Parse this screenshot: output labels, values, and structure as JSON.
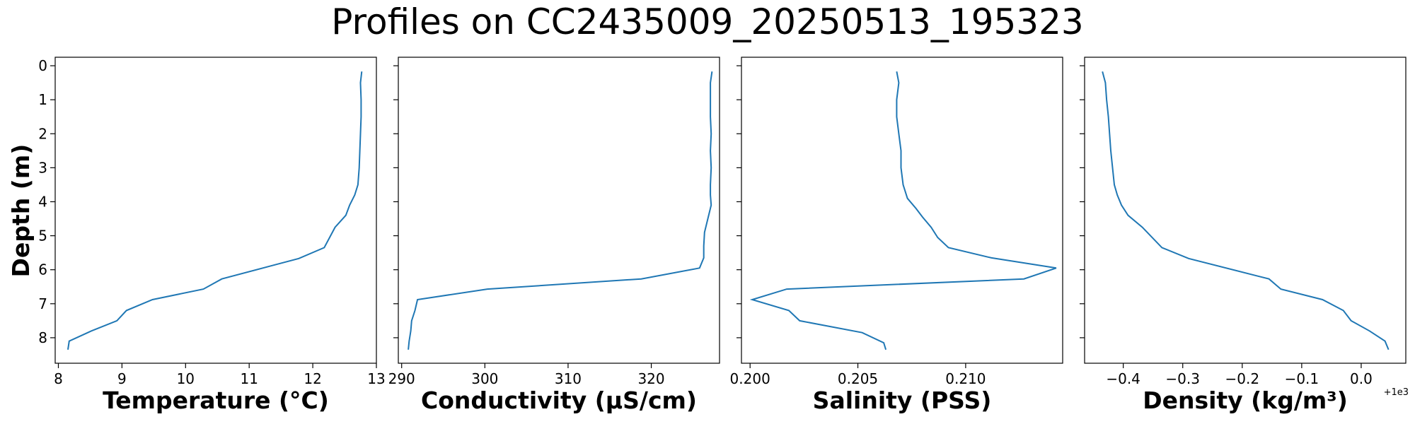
{
  "title": "Profiles on CC2435009_20250513_195323",
  "ylabel": "Depth (m)",
  "colors": {
    "line": "#1f77b4"
  },
  "chart_data": {
    "type": "line",
    "orientation": "profile",
    "y": {
      "label": "Depth (m)",
      "ylim": [
        8.75,
        -0.25
      ],
      "inverted": true,
      "ticks": [
        0,
        1,
        2,
        3,
        4,
        5,
        6,
        7,
        8
      ],
      "tick_labels": [
        "0",
        "1",
        "2",
        "3",
        "4",
        "5",
        "6",
        "7",
        "8"
      ]
    },
    "panels": [
      {
        "key": "temperature",
        "xlabel": "Temperature (°C)",
        "xlim": [
          7.95,
          13.0
        ],
        "ticks": [
          8,
          9,
          10,
          11,
          12,
          13
        ],
        "tick_labels": [
          "8",
          "9",
          "10",
          "11",
          "12",
          "13"
        ],
        "offset_label": "",
        "points": [
          [
            12.77,
            0.17
          ],
          [
            12.75,
            0.5
          ],
          [
            12.76,
            1.0
          ],
          [
            12.76,
            1.5
          ],
          [
            12.75,
            2.0
          ],
          [
            12.74,
            2.5
          ],
          [
            12.73,
            3.0
          ],
          [
            12.71,
            3.5
          ],
          [
            12.66,
            3.8
          ],
          [
            12.58,
            4.1
          ],
          [
            12.52,
            4.4
          ],
          [
            12.35,
            4.75
          ],
          [
            12.18,
            5.35
          ],
          [
            11.78,
            5.67
          ],
          [
            10.57,
            6.27
          ],
          [
            10.28,
            6.57
          ],
          [
            9.48,
            6.88
          ],
          [
            9.07,
            7.2
          ],
          [
            8.92,
            7.5
          ],
          [
            8.52,
            7.8
          ],
          [
            8.17,
            8.1
          ],
          [
            8.15,
            8.35
          ]
        ]
      },
      {
        "key": "conductivity",
        "xlabel": "Conductivity (µS/cm)",
        "xlim": [
          289.6,
          328.2
        ],
        "ticks": [
          290,
          300,
          310,
          320
        ],
        "tick_labels": [
          "290",
          "300",
          "310",
          "320"
        ],
        "offset_label": "",
        "points": [
          [
            327.3,
            0.17
          ],
          [
            327.1,
            0.5
          ],
          [
            327.1,
            1.0
          ],
          [
            327.1,
            1.5
          ],
          [
            327.2,
            2.0
          ],
          [
            327.1,
            2.5
          ],
          [
            327.2,
            3.0
          ],
          [
            327.1,
            3.5
          ],
          [
            327.1,
            3.8
          ],
          [
            327.2,
            4.1
          ],
          [
            326.8,
            4.5
          ],
          [
            326.4,
            4.9
          ],
          [
            326.3,
            5.3
          ],
          [
            326.3,
            5.65
          ],
          [
            325.8,
            5.95
          ],
          [
            318.8,
            6.27
          ],
          [
            300.3,
            6.57
          ],
          [
            291.9,
            6.88
          ],
          [
            291.6,
            7.2
          ],
          [
            291.2,
            7.5
          ],
          [
            291.1,
            7.8
          ],
          [
            290.9,
            8.1
          ],
          [
            290.8,
            8.35
          ]
        ]
      },
      {
        "key": "salinity",
        "xlabel": "Salinity (PSS)",
        "xlim": [
          0.1996,
          0.2145
        ],
        "ticks": [
          0.2,
          0.205,
          0.21
        ],
        "tick_labels": [
          "0.200",
          "0.205",
          "0.210"
        ],
        "offset_label": "",
        "points": [
          [
            0.2068,
            0.17
          ],
          [
            0.2069,
            0.5
          ],
          [
            0.2068,
            1.0
          ],
          [
            0.2068,
            1.5
          ],
          [
            0.2069,
            2.0
          ],
          [
            0.207,
            2.5
          ],
          [
            0.207,
            3.0
          ],
          [
            0.2071,
            3.5
          ],
          [
            0.2073,
            3.9
          ],
          [
            0.2077,
            4.2
          ],
          [
            0.208,
            4.45
          ],
          [
            0.2084,
            4.75
          ],
          [
            0.2087,
            5.05
          ],
          [
            0.2092,
            5.35
          ],
          [
            0.2112,
            5.65
          ],
          [
            0.2142,
            5.95
          ],
          [
            0.2127,
            6.27
          ],
          [
            0.2017,
            6.57
          ],
          [
            0.2001,
            6.88
          ],
          [
            0.2018,
            7.2
          ],
          [
            0.2023,
            7.5
          ],
          [
            0.2052,
            7.85
          ],
          [
            0.2062,
            8.15
          ],
          [
            0.2063,
            8.35
          ]
        ]
      },
      {
        "key": "density",
        "xlabel": "Density (kg/m³)",
        "xlim": [
          -0.465,
          0.075
        ],
        "ticks": [
          -0.4,
          -0.3,
          -0.2,
          -0.1,
          0.0
        ],
        "tick_labels": [
          "−0.4",
          "−0.3",
          "−0.2",
          "−0.1",
          "0.0"
        ],
        "offset_label": "+1e3",
        "points": [
          [
            -0.435,
            0.17
          ],
          [
            -0.43,
            0.5
          ],
          [
            -0.428,
            1.0
          ],
          [
            -0.425,
            1.5
          ],
          [
            -0.423,
            2.0
          ],
          [
            -0.421,
            2.5
          ],
          [
            -0.418,
            3.0
          ],
          [
            -0.415,
            3.5
          ],
          [
            -0.41,
            3.8
          ],
          [
            -0.403,
            4.1
          ],
          [
            -0.392,
            4.4
          ],
          [
            -0.368,
            4.75
          ],
          [
            -0.335,
            5.35
          ],
          [
            -0.29,
            5.67
          ],
          [
            -0.155,
            6.27
          ],
          [
            -0.135,
            6.57
          ],
          [
            -0.065,
            6.88
          ],
          [
            -0.03,
            7.2
          ],
          [
            -0.017,
            7.5
          ],
          [
            0.014,
            7.8
          ],
          [
            0.04,
            8.1
          ],
          [
            0.046,
            8.35
          ]
        ]
      }
    ]
  }
}
